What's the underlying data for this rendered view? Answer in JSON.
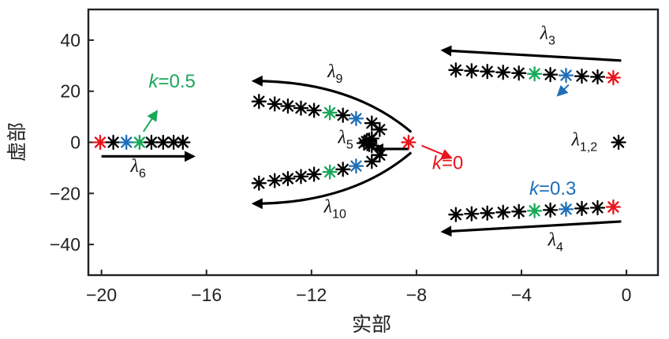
{
  "chart_data": {
    "type": "scatter",
    "title": "",
    "xlabel": "实部",
    "ylabel": "虚部",
    "xlim": [
      -20.5,
      1.2
    ],
    "ylim": [
      -52,
      52
    ],
    "xticks": [
      -20,
      -16,
      -12,
      -8,
      -4,
      0
    ],
    "xtick_labels": [
      "−20",
      "−16",
      "−12",
      "−8",
      "−4",
      "0"
    ],
    "yticks": [
      40,
      20,
      0,
      -20,
      -40
    ],
    "ytick_labels": [
      "40",
      "20",
      "0",
      "−20",
      "−40"
    ],
    "grid": false,
    "colors": {
      "k0": "#e8141c",
      "k03": "#1f6fb8",
      "k05": "#18a85a",
      "other": "#000000",
      "arrow": "#000000",
      "pointer_k0": "#e8141c"
    },
    "series": [
      {
        "points": [
          [
            -0.5,
            25.3
          ],
          [
            -1.1,
            25.6
          ],
          [
            -1.7,
            25.9
          ],
          [
            -2.3,
            26.2
          ],
          [
            -2.9,
            26.5
          ],
          [
            -3.5,
            26.8
          ],
          [
            -4.1,
            27.1
          ],
          [
            -4.7,
            27.4
          ],
          [
            -5.3,
            27.7
          ],
          [
            -5.9,
            28.0
          ],
          [
            -6.5,
            28.3
          ]
        ],
        "marker_colors": [
          "k0",
          "other",
          "other",
          "k03",
          "other",
          "k05",
          "other",
          "other",
          "other",
          "other",
          "other"
        ]
      },
      {
        "points": [
          [
            -0.5,
            -25.3
          ],
          [
            -1.1,
            -25.6
          ],
          [
            -1.7,
            -25.9
          ],
          [
            -2.3,
            -26.2
          ],
          [
            -2.9,
            -26.5
          ],
          [
            -3.5,
            -26.8
          ],
          [
            -4.1,
            -27.1
          ],
          [
            -4.7,
            -27.4
          ],
          [
            -5.3,
            -27.7
          ],
          [
            -5.9,
            -28.0
          ],
          [
            -6.5,
            -28.3
          ]
        ],
        "marker_colors": [
          "k0",
          "other",
          "other",
          "k03",
          "other",
          "k05",
          "other",
          "other",
          "other",
          "other",
          "other"
        ]
      },
      {
        "points": [
          [
            -0.3,
            0
          ]
        ],
        "marker_colors": [
          "other"
        ]
      },
      {
        "points": [
          [
            -20.05,
            0
          ],
          [
            -19.55,
            0
          ],
          [
            -19.05,
            0
          ],
          [
            -18.55,
            0
          ],
          [
            -18.1,
            0
          ],
          [
            -17.65,
            0
          ],
          [
            -17.25,
            0
          ],
          [
            -16.9,
            0
          ]
        ],
        "marker_colors": [
          "k0",
          "other",
          "k03",
          "k05",
          "other",
          "other",
          "other",
          "other"
        ]
      },
      {
        "points": [
          [
            -9.7,
            1.5
          ],
          [
            -9.8,
            0.9
          ],
          [
            -9.9,
            0.3
          ],
          [
            -10.0,
            -0.3
          ],
          [
            -9.8,
            -0.9
          ],
          [
            -9.7,
            -1.3
          ]
        ],
        "marker_colors": [
          "other",
          "other",
          "other",
          "other",
          "other",
          "other"
        ]
      },
      {
        "points": [
          [
            -8.3,
            0
          ],
          [
            -9.4,
            5.0
          ],
          [
            -9.7,
            7.5
          ],
          [
            -10.3,
            9.3
          ],
          [
            -10.8,
            10.6
          ],
          [
            -11.3,
            11.6
          ],
          [
            -11.9,
            12.5
          ],
          [
            -12.4,
            13.4
          ],
          [
            -12.9,
            14.2
          ],
          [
            -13.4,
            15.0
          ],
          [
            -14.0,
            16.0
          ]
        ],
        "marker_colors": [
          "k0",
          "other",
          "other",
          "k03",
          "other",
          "k05",
          "other",
          "other",
          "other",
          "other",
          "other"
        ]
      },
      {
        "points": [
          [
            -9.4,
            -5.0
          ],
          [
            -9.7,
            -7.5
          ],
          [
            -10.3,
            -9.3
          ],
          [
            -10.8,
            -10.6
          ],
          [
            -11.3,
            -11.6
          ],
          [
            -11.9,
            -12.5
          ],
          [
            -12.4,
            -13.4
          ],
          [
            -12.9,
            -14.2
          ],
          [
            -13.4,
            -15.0
          ],
          [
            -14.0,
            -16.0
          ]
        ],
        "marker_colors": [
          "other",
          "other",
          "k03",
          "other",
          "k05",
          "other",
          "other",
          "other",
          "other",
          "other"
        ]
      }
    ],
    "annotations": [
      {
        "sym": "λ",
        "sub": "3",
        "x": -3.0,
        "y": 40.5
      },
      {
        "sym": "λ",
        "sub": "9",
        "x": -11.1,
        "y": 25.5
      },
      {
        "sym": "λ",
        "sub": "5",
        "x": -10.7,
        "y": -0.3
      },
      {
        "sym": "λ",
        "sub": "1,2",
        "x": -1.6,
        "y": -1.2
      },
      {
        "sym": "λ",
        "sub": "6",
        "x": -18.6,
        "y": -11.5
      },
      {
        "sym": "λ",
        "sub": "10",
        "x": -11.1,
        "y": -27.5
      },
      {
        "sym": "λ",
        "sub": "4",
        "x": -2.7,
        "y": -40.5
      }
    ],
    "k_labels": [
      {
        "k": "k",
        "eq": "=0.5",
        "x": -18.2,
        "y": 21.5,
        "color": "k05"
      },
      {
        "k": "k",
        "eq": "=0.3",
        "x": -3.7,
        "y": -20.5,
        "color": "k03"
      },
      {
        "k": "k",
        "eq": "=0",
        "x": -7.4,
        "y": -10.5,
        "color": "k0"
      }
    ]
  }
}
